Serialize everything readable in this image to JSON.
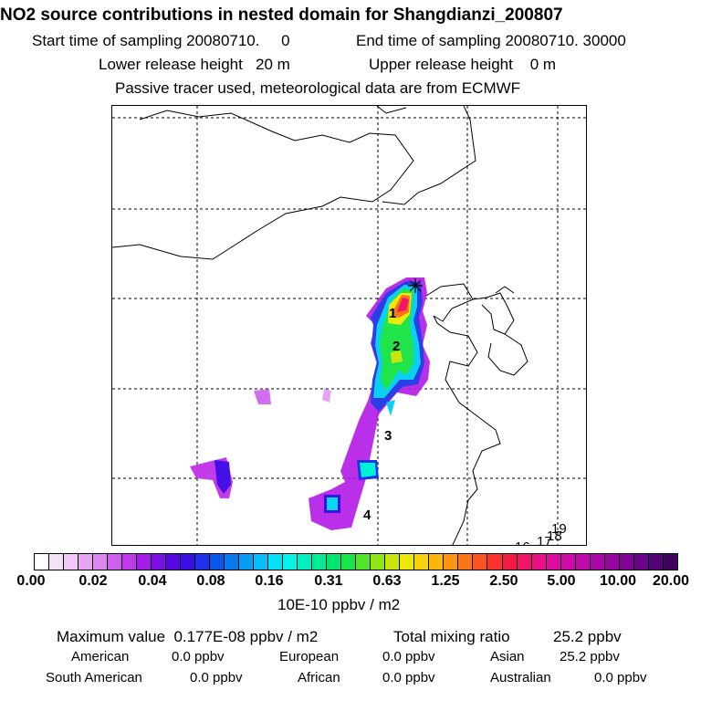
{
  "title": "NO2 source contributions in nested domain for Shangdianzi_200807",
  "header": {
    "start_label": "Start time of sampling 20080710.     0",
    "end_label": "End time of sampling 20080710. 30000",
    "lower_release": "Lower release height   20 m",
    "upper_release": "Upper release height    0 m",
    "tracer_note": "Passive tracer used, meteorological data are from ECMWF"
  },
  "map": {
    "labels": [
      "1",
      "2",
      "3",
      "4",
      "16",
      "17",
      "18",
      "19"
    ],
    "receptor_marker": "star-marker-icon"
  },
  "colorbar": {
    "ticks": [
      "0.00",
      "0.02",
      "0.04",
      "0.08",
      "0.16",
      "0.31",
      "0.63",
      "1.25",
      "2.50",
      "5.00",
      "10.00",
      "20.00"
    ],
    "colors": [
      "#ffffff",
      "#f5e1f7",
      "#f0c8f5",
      "#e8a6f2",
      "#dd88ef",
      "#cf5fed",
      "#c03ae9",
      "#a21ee8",
      "#7b10e6",
      "#5608e3",
      "#3a0ee3",
      "#1e33e8",
      "#0b57ec",
      "#0a79f0",
      "#0a9bf3",
      "#08bdf5",
      "#05e0f4",
      "#00f5e8",
      "#00f0c0",
      "#00eb98",
      "#00e670",
      "#19e44a",
      "#54e52a",
      "#8fe515",
      "#c8e60e",
      "#ede80a",
      "#f8d208",
      "#fbb50b",
      "#fb9512",
      "#fb7419",
      "#fa5424",
      "#f8332e",
      "#f51a45",
      "#f21466",
      "#ea1087",
      "#de0ba0",
      "#cf0aaa",
      "#be09ab",
      "#ab07a6",
      "#97069f",
      "#800596",
      "#6a048a",
      "#520378",
      "#3d035f"
    ],
    "units": "10E-10 ppbv / m2"
  },
  "summary": {
    "max_label": "Maximum value  0.177E-08 ppbv / m2",
    "total_label": "Total mixing ratio",
    "total_value": "25.2 ppbv",
    "regions": [
      {
        "name": "American",
        "value": "0.0 ppbv"
      },
      {
        "name": "European",
        "value": "0.0 ppbv"
      },
      {
        "name": "Asian",
        "value": "25.2 ppbv"
      },
      {
        "name": "South American",
        "value": "0.0 ppbv"
      },
      {
        "name": "African",
        "value": "0.0 ppbv"
      },
      {
        "name": "Australian",
        "value": "0.0 ppbv"
      }
    ]
  }
}
